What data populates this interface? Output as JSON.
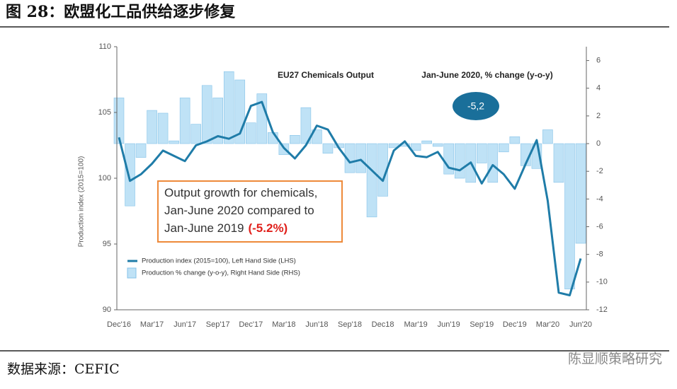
{
  "chart_data": {
    "type": "combo",
    "title": "图 28：欧盟化工品供给逐步修复",
    "inner_title": "EU27 Chemicals Output",
    "inner_subtitle": "Jan-June 2020, % change (y-o-y)",
    "bubble": "-5,2",
    "callout": [
      "Output growth for chemicals,",
      "Jan-June 2020 compared to",
      "Jan-June 2019"
    ],
    "callout_highlight": "(-5.2%)",
    "ylabel": "Production index (2015=100)",
    "categories": [
      "Dec'16",
      null,
      null,
      "Mar'17",
      null,
      null,
      "Jun'17",
      null,
      null,
      "Sep'17",
      null,
      null,
      "Dec'17",
      null,
      null,
      "Mar'18",
      null,
      null,
      "Jun'18",
      null,
      null,
      "Sep'18",
      null,
      null,
      "Dec18",
      null,
      null,
      "Mar'19",
      null,
      null,
      "Jun'19",
      null,
      null,
      "Sep'19",
      null,
      null,
      "Dec'19",
      null,
      null,
      "Mar'20",
      null,
      null,
      "Jun'20"
    ],
    "series": [
      {
        "name": "Production index (2015=100), Left Hand Side (LHS)",
        "type": "line",
        "axis": "y",
        "color": "#1f7ca8",
        "values": [
          103.1,
          99.8,
          100.3,
          101.1,
          102.1,
          101.7,
          101.3,
          102.5,
          102.8,
          103.2,
          103.0,
          103.4,
          105.5,
          105.8,
          103.5,
          102.3,
          101.5,
          102.5,
          104.0,
          103.7,
          102.3,
          101.2,
          101.4,
          100.6,
          99.8,
          102.1,
          102.8,
          101.7,
          101.6,
          102.0,
          100.8,
          100.6,
          101.2,
          99.6,
          101.0,
          100.3,
          99.2,
          101.1,
          102.9,
          98.3,
          91.3,
          91.1,
          93.9
        ]
      },
      {
        "name": "Production % change (y-o-y), Right Hand Side (RHS)",
        "type": "bar",
        "axis": "y2",
        "color": "#bfe2f6",
        "values": [
          3.3,
          -4.5,
          -1.0,
          2.4,
          2.2,
          0.2,
          3.3,
          1.4,
          4.2,
          3.3,
          5.2,
          4.6,
          1.5,
          3.6,
          0.8,
          -0.8,
          0.6,
          2.6,
          1.0,
          -0.7,
          -0.3,
          -2.1,
          -2.1,
          -5.3,
          -3.8,
          -0.3,
          -0.2,
          -0.5,
          0.2,
          -0.2,
          -2.2,
          -2.5,
          -2.8,
          -1.4,
          -2.8,
          -0.6,
          0.5,
          -1.6,
          -1.8,
          1.0,
          -2.8,
          -10.5,
          -7.2
        ]
      }
    ],
    "ylim": [
      90,
      110
    ],
    "yticks": [
      90,
      95,
      100,
      105,
      110
    ],
    "y2lim": [
      -12,
      7
    ],
    "y2ticks": [
      -12,
      -10,
      -8,
      -6,
      -4,
      -2,
      0,
      2,
      4,
      6
    ]
  },
  "source": "数据来源：CEFIC",
  "watermark": "陈显顺策略研究"
}
